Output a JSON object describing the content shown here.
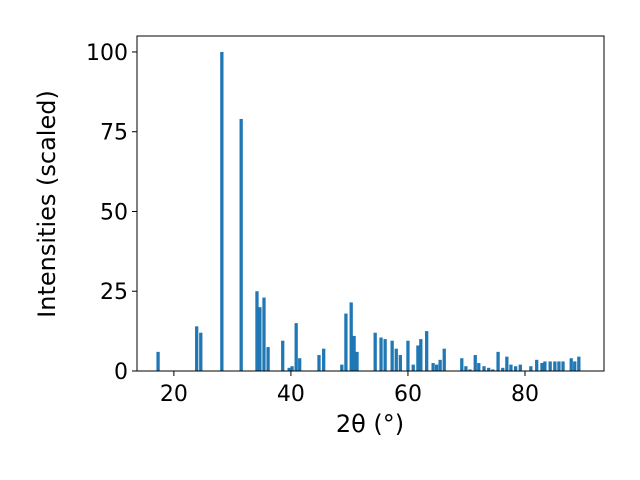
{
  "chart_data": {
    "type": "bar",
    "xlabel": "2θ (°)",
    "ylabel": "Intensities (scaled)",
    "x": [
      17.3,
      23.9,
      24.6,
      28.2,
      31.5,
      34.2,
      34.7,
      35.4,
      36.1,
      38.6,
      39.7,
      40.2,
      40.9,
      41.5,
      44.8,
      45.6,
      48.7,
      49.4,
      50.3,
      50.8,
      51.3,
      54.4,
      55.4,
      56.1,
      57.3,
      58.0,
      58.7,
      60.0,
      60.9,
      61.7,
      62.2,
      63.2,
      64.3,
      64.9,
      65.5,
      66.2,
      69.2,
      69.9,
      70.6,
      71.5,
      72.1,
      73.0,
      73.8,
      74.5,
      75.4,
      76.2,
      76.9,
      77.6,
      78.4,
      79.2,
      81.0,
      82.0,
      82.9,
      83.4,
      84.3,
      85.1,
      85.8,
      86.5,
      87.9,
      88.5,
      89.2
    ],
    "values": [
      6,
      14,
      12,
      100,
      79,
      25,
      20,
      23,
      7.5,
      9.5,
      1,
      1.5,
      15,
      4,
      5,
      7,
      2,
      18,
      21.5,
      11,
      6,
      12,
      10.5,
      10,
      9.5,
      7,
      5,
      9.5,
      2,
      8,
      10,
      12.5,
      2.5,
      2,
      3.5,
      7,
      4,
      1.5,
      0.5,
      5,
      2.5,
      1.5,
      1,
      0.5,
      6,
      1,
      4.5,
      2,
      1.5,
      2,
      1.5,
      3.5,
      2.5,
      3,
      3,
      3,
      3,
      3,
      4,
      3,
      4.5
    ],
    "color": "#1f77b4",
    "xlim": [
      13.7,
      93.5
    ],
    "xticks": [
      20,
      40,
      60,
      80
    ],
    "ylim": [
      0,
      105
    ],
    "yticks": [
      0,
      25,
      50,
      75,
      100
    ]
  }
}
